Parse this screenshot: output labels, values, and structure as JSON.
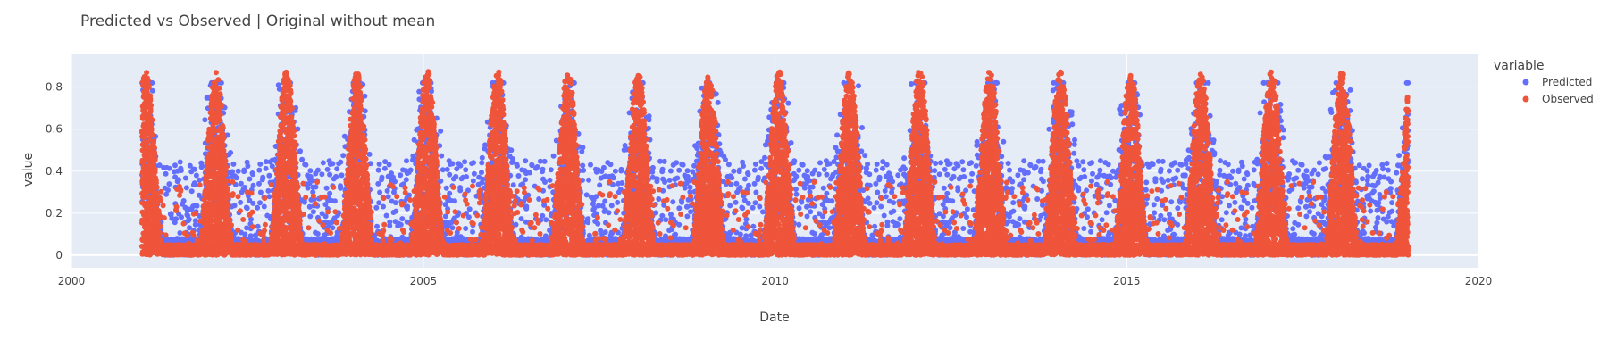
{
  "chart_data": {
    "type": "scatter",
    "title": "Predicted vs Observed | Original without mean",
    "xlabel": "Date",
    "ylabel": "value",
    "xlim": [
      "2000-01-01",
      "2020-01-01"
    ],
    "ylim": [
      -0.06,
      0.96
    ],
    "x_ticks": [
      "2000",
      "2005",
      "2010",
      "2015",
      "2020"
    ],
    "y_ticks": [
      "0",
      "0.2",
      "0.4",
      "0.6",
      "0.8"
    ],
    "y_tick_values": [
      0,
      0.2,
      0.4,
      0.6,
      0.8
    ],
    "x_tick_values": [
      "2000-01-01",
      "2005-01-01",
      "2010-01-01",
      "2015-01-01",
      "2020-01-01"
    ],
    "grid": true,
    "background": "#e5ecf6",
    "legend": {
      "title": "variable",
      "placement": "right"
    },
    "data_range": [
      "2001-01-01",
      "2018-12-31"
    ],
    "series": [
      {
        "name": "Predicted",
        "color": "#636efa"
      },
      {
        "name": "Observed",
        "color": "#ef553b"
      }
    ]
  }
}
